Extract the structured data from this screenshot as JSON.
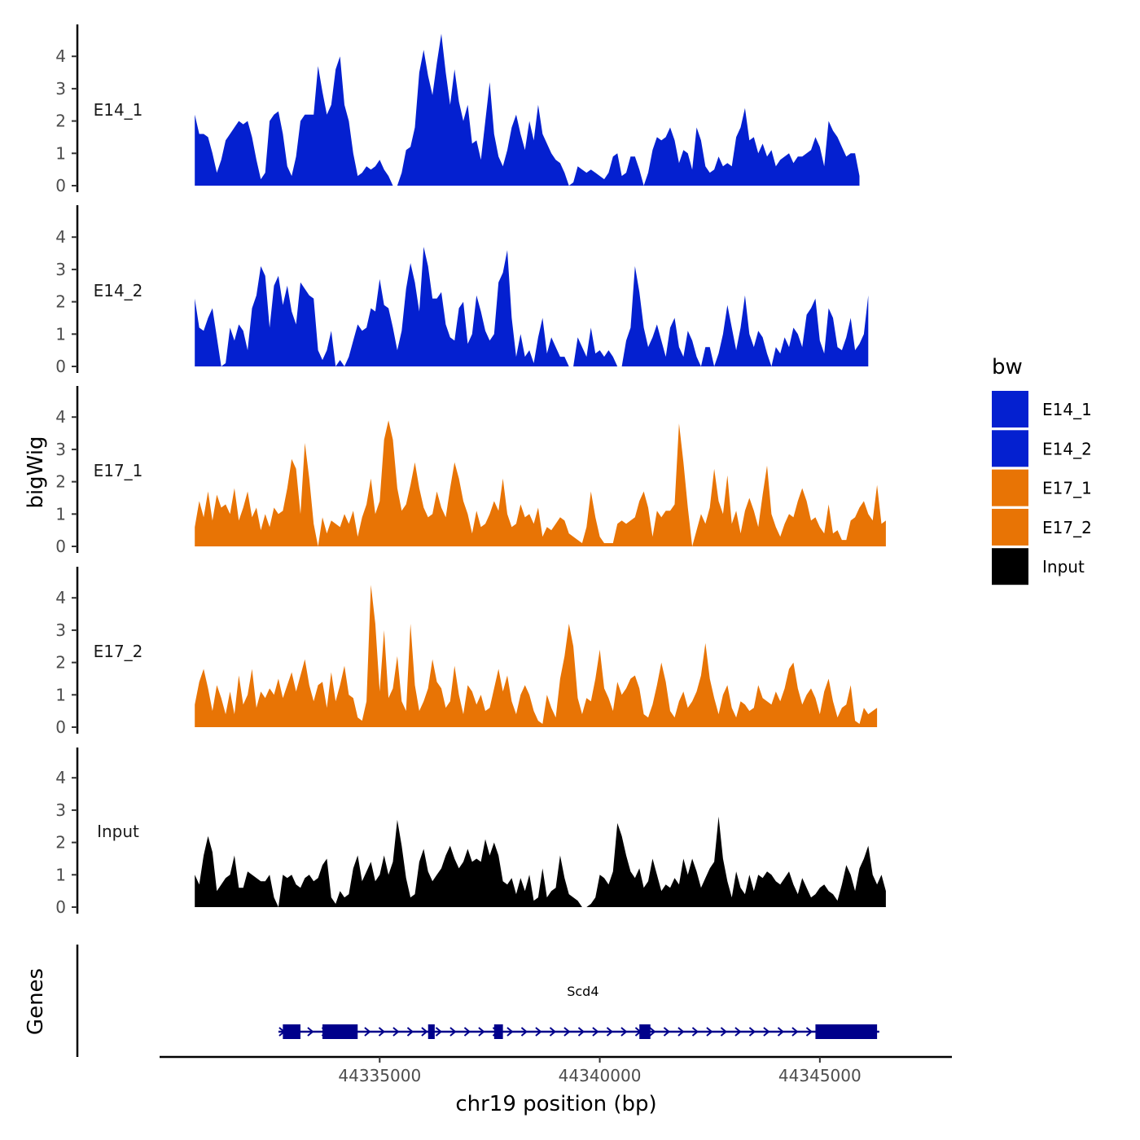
{
  "chart_data": {
    "type": "area",
    "chromosome": "chr19",
    "xlabel": "chr19 position (bp)",
    "ylabel": "bigWig",
    "genes_label": "Genes",
    "xlim": [
      44330000,
      44348000
    ],
    "ylim": [
      0,
      4.9
    ],
    "x_ticks": [
      44335000,
      44340000,
      44345000
    ],
    "x_tick_labels": [
      "44335000",
      "44340000",
      "44345000"
    ],
    "y_ticks": [
      0,
      1,
      2,
      3,
      4
    ],
    "y_tick_labels": [
      "0",
      "1",
      "2",
      "3",
      "4"
    ],
    "x_start": 44330800,
    "x_step": 100,
    "series": [
      {
        "name": "E14_1",
        "color": "#0420D0",
        "values": [
          2.2,
          1.6,
          1.6,
          1.5,
          1.0,
          0.4,
          0.8,
          1.4,
          1.6,
          1.8,
          2.0,
          1.9,
          2.0,
          1.5,
          0.8,
          0.2,
          0.4,
          2.0,
          2.2,
          2.3,
          1.6,
          0.6,
          0.3,
          0.9,
          2.0,
          2.2,
          2.2,
          2.2,
          3.7,
          2.9,
          2.2,
          2.5,
          3.6,
          4.0,
          2.5,
          2.0,
          1.0,
          0.3,
          0.4,
          0.6,
          0.5,
          0.6,
          0.8,
          0.5,
          0.3,
          0.0,
          0.0,
          0.4,
          1.1,
          1.2,
          1.8,
          3.5,
          4.2,
          3.4,
          2.8,
          3.8,
          4.7,
          3.5,
          2.5,
          3.6,
          2.6,
          2.0,
          2.5,
          1.3,
          1.4,
          0.8,
          2.0,
          3.2,
          1.6,
          0.9,
          0.6,
          1.1,
          1.8,
          2.2,
          1.6,
          1.1,
          2.0,
          1.4,
          2.5,
          1.6,
          1.3,
          1.0,
          0.8,
          0.7,
          0.4,
          0.0,
          0.1,
          0.6,
          0.5,
          0.4,
          0.5,
          0.4,
          0.3,
          0.2,
          0.4,
          0.9,
          1.0,
          0.3,
          0.4,
          0.9,
          0.9,
          0.5,
          0.0,
          0.4,
          1.1,
          1.5,
          1.4,
          1.5,
          1.8,
          1.4,
          0.7,
          1.1,
          1.0,
          0.5,
          1.8,
          1.4,
          0.6,
          0.4,
          0.5,
          0.9,
          0.6,
          0.7,
          0.6,
          1.5,
          1.8,
          2.4,
          1.4,
          1.5,
          1.0,
          1.3,
          0.9,
          1.1,
          0.6,
          0.8,
          0.9,
          1.0,
          0.7,
          0.9,
          0.9,
          1.0,
          1.1,
          1.5,
          1.2,
          0.6,
          2.0,
          1.7,
          1.5,
          1.2,
          0.9,
          1.0,
          1.0,
          0.3
        ]
      },
      {
        "name": "E14_2",
        "color": "#0420D0",
        "values": [
          2.1,
          1.2,
          1.1,
          1.5,
          1.8,
          0.9,
          0.0,
          0.1,
          1.2,
          0.8,
          1.3,
          1.1,
          0.5,
          1.8,
          2.2,
          3.1,
          2.8,
          1.2,
          2.5,
          2.8,
          1.9,
          2.5,
          1.7,
          1.3,
          2.6,
          2.4,
          2.2,
          2.1,
          0.5,
          0.2,
          0.5,
          1.1,
          0.0,
          0.2,
          0.0,
          0.3,
          0.8,
          1.3,
          1.1,
          1.2,
          1.8,
          1.7,
          2.7,
          1.9,
          1.8,
          1.2,
          0.5,
          1.1,
          2.4,
          3.2,
          2.6,
          1.7,
          3.7,
          3.1,
          2.1,
          2.1,
          2.3,
          1.3,
          0.9,
          0.8,
          1.8,
          2.0,
          0.7,
          1.0,
          2.2,
          1.7,
          1.1,
          0.8,
          1.0,
          2.6,
          2.9,
          3.6,
          1.5,
          0.3,
          1.0,
          0.3,
          0.5,
          0.1,
          0.9,
          1.5,
          0.4,
          0.9,
          0.6,
          0.3,
          0.3,
          0.0,
          0.0,
          0.9,
          0.6,
          0.3,
          1.2,
          0.4,
          0.5,
          0.3,
          0.5,
          0.3,
          0.0,
          0.0,
          0.8,
          1.2,
          3.1,
          2.3,
          1.2,
          0.6,
          0.9,
          1.3,
          0.8,
          0.3,
          1.2,
          1.5,
          0.6,
          0.3,
          1.1,
          0.8,
          0.3,
          0.0,
          0.6,
          0.6,
          0.0,
          0.4,
          1.0,
          1.9,
          1.2,
          0.5,
          1.2,
          2.2,
          1.0,
          0.6,
          1.1,
          0.9,
          0.4,
          0.0,
          0.6,
          0.4,
          0.9,
          0.6,
          1.2,
          1.0,
          0.6,
          1.6,
          1.8,
          2.1,
          0.8,
          0.4,
          1.8,
          1.5,
          0.6,
          0.5,
          0.9,
          1.5,
          0.5,
          0.7,
          1.0,
          2.2
        ]
      },
      {
        "name": "E17_1",
        "color": "#E87405",
        "values": [
          0.6,
          1.4,
          0.9,
          1.7,
          0.8,
          1.6,
          1.2,
          1.3,
          1.0,
          1.8,
          0.8,
          1.2,
          1.7,
          0.9,
          1.2,
          0.5,
          1.0,
          0.6,
          1.2,
          1.0,
          1.1,
          1.8,
          2.7,
          2.4,
          1.0,
          3.2,
          2.1,
          0.7,
          0.0,
          0.9,
          0.4,
          0.8,
          0.7,
          0.6,
          1.0,
          0.7,
          1.1,
          0.3,
          0.9,
          1.3,
          2.1,
          1.0,
          1.4,
          3.3,
          3.9,
          3.3,
          1.8,
          1.1,
          1.3,
          1.9,
          2.6,
          1.8,
          1.2,
          0.9,
          1.0,
          1.7,
          1.2,
          0.9,
          1.8,
          2.6,
          2.1,
          1.4,
          1.0,
          0.4,
          1.1,
          0.6,
          0.7,
          1.0,
          1.4,
          1.1,
          2.1,
          1.0,
          0.6,
          0.7,
          1.3,
          0.9,
          1.0,
          0.7,
          1.2,
          0.3,
          0.6,
          0.5,
          0.7,
          0.9,
          0.8,
          0.4,
          0.3,
          0.2,
          0.1,
          0.6,
          1.7,
          0.9,
          0.3,
          0.1,
          0.1,
          0.1,
          0.7,
          0.8,
          0.7,
          0.8,
          0.9,
          1.4,
          1.7,
          1.2,
          0.3,
          1.1,
          0.9,
          1.1,
          1.1,
          1.3,
          3.8,
          2.6,
          1.2,
          0.0,
          0.5,
          1.0,
          0.7,
          1.2,
          2.4,
          1.4,
          1.0,
          2.2,
          0.7,
          1.1,
          0.4,
          1.1,
          1.5,
          1.1,
          0.6,
          1.6,
          2.5,
          1.0,
          0.6,
          0.3,
          0.7,
          1.0,
          0.9,
          1.4,
          1.8,
          1.4,
          0.8,
          0.9,
          0.6,
          0.4,
          1.3,
          0.4,
          0.5,
          0.2,
          0.2,
          0.8,
          0.9,
          1.2,
          1.4,
          1.0,
          0.8,
          1.9,
          0.7,
          0.8
        ]
      },
      {
        "name": "E17_2",
        "color": "#E87405",
        "values": [
          0.7,
          1.4,
          1.8,
          1.2,
          0.5,
          1.3,
          0.9,
          0.4,
          1.1,
          0.4,
          1.6,
          0.7,
          1.0,
          1.8,
          0.6,
          1.1,
          0.9,
          1.2,
          1.0,
          1.5,
          0.9,
          1.3,
          1.7,
          1.1,
          1.6,
          2.1,
          1.3,
          0.8,
          1.3,
          1.4,
          0.6,
          1.7,
          0.8,
          1.3,
          1.9,
          1.0,
          0.9,
          0.3,
          0.2,
          0.8,
          4.4,
          3.2,
          1.1,
          3.0,
          0.9,
          1.2,
          2.2,
          0.8,
          0.5,
          3.2,
          1.3,
          0.5,
          0.8,
          1.2,
          2.1,
          1.4,
          1.2,
          0.6,
          0.8,
          1.9,
          1.0,
          0.4,
          1.3,
          1.1,
          0.7,
          1.0,
          0.5,
          0.6,
          1.2,
          1.8,
          1.1,
          1.6,
          0.8,
          0.4,
          1.0,
          1.3,
          1.0,
          0.5,
          0.2,
          0.1,
          1.0,
          0.6,
          0.3,
          1.5,
          2.2,
          3.2,
          2.5,
          0.9,
          0.4,
          0.9,
          0.8,
          1.5,
          2.4,
          1.2,
          0.9,
          0.5,
          1.4,
          1.0,
          1.2,
          1.5,
          1.6,
          1.2,
          0.4,
          0.3,
          0.7,
          1.3,
          2.0,
          1.4,
          0.5,
          0.3,
          0.8,
          1.1,
          0.6,
          0.8,
          1.1,
          1.6,
          2.6,
          1.5,
          0.9,
          0.4,
          1.0,
          1.3,
          0.6,
          0.3,
          0.8,
          0.7,
          0.5,
          0.6,
          1.3,
          0.9,
          0.8,
          0.7,
          1.1,
          0.8,
          1.2,
          1.8,
          2.0,
          1.2,
          0.7,
          1.0,
          1.2,
          0.9,
          0.4,
          1.1,
          1.5,
          0.8,
          0.3,
          0.6,
          0.7,
          1.3,
          0.2,
          0.1,
          0.6,
          0.4,
          0.5,
          0.6
        ]
      },
      {
        "name": "Input",
        "color": "#000000",
        "values": [
          1.0,
          0.7,
          1.6,
          2.2,
          1.7,
          0.5,
          0.7,
          0.9,
          1.0,
          1.6,
          0.6,
          0.6,
          1.1,
          1.0,
          0.9,
          0.8,
          0.8,
          1.0,
          0.3,
          0.0,
          1.0,
          0.9,
          1.0,
          0.7,
          0.6,
          0.9,
          1.0,
          0.8,
          0.9,
          1.3,
          1.5,
          0.3,
          0.1,
          0.5,
          0.3,
          0.4,
          1.2,
          1.6,
          0.8,
          1.1,
          1.4,
          0.8,
          1.0,
          1.6,
          1.0,
          1.4,
          2.7,
          1.9,
          0.9,
          0.3,
          0.4,
          1.4,
          1.8,
          1.1,
          0.8,
          1.0,
          1.2,
          1.6,
          1.9,
          1.5,
          1.2,
          1.4,
          1.8,
          1.4,
          1.5,
          1.4,
          2.1,
          1.6,
          2.0,
          1.6,
          0.8,
          0.7,
          0.9,
          0.4,
          0.9,
          0.5,
          1.0,
          0.2,
          0.3,
          1.2,
          0.3,
          0.5,
          0.6,
          1.6,
          0.9,
          0.4,
          0.3,
          0.2,
          0.0,
          0.0,
          0.1,
          0.3,
          1.0,
          0.9,
          0.7,
          1.1,
          2.6,
          2.2,
          1.6,
          1.1,
          0.9,
          1.2,
          0.6,
          0.8,
          1.5,
          1.0,
          0.5,
          0.7,
          0.6,
          0.9,
          0.7,
          1.5,
          1.0,
          1.5,
          1.1,
          0.6,
          0.9,
          1.2,
          1.4,
          2.8,
          1.5,
          0.8,
          0.3,
          1.1,
          0.6,
          0.4,
          1.0,
          0.5,
          1.0,
          0.9,
          1.1,
          1.0,
          0.8,
          0.7,
          0.9,
          1.1,
          0.7,
          0.4,
          0.9,
          0.6,
          0.3,
          0.4,
          0.6,
          0.7,
          0.5,
          0.4,
          0.2,
          0.7,
          1.3,
          1.0,
          0.5,
          1.2,
          1.5,
          1.9,
          1.0,
          0.7,
          1.0,
          0.5
        ]
      }
    ],
    "legend": {
      "title": "bw",
      "items": [
        {
          "label": "E14_1",
          "color": "#0420D0"
        },
        {
          "label": "E14_2",
          "color": "#0420D0"
        },
        {
          "label": "E17_1",
          "color": "#E87405"
        },
        {
          "label": "E17_2",
          "color": "#E87405"
        },
        {
          "label": "Input",
          "color": "#000000"
        }
      ]
    },
    "gene": {
      "name": "Scd4",
      "strand": "+",
      "color": "#00008B",
      "start": 44332700,
      "end": 44346350,
      "exons": [
        [
          44332800,
          44333200
        ],
        [
          44333700,
          44334500
        ],
        [
          44336100,
          44336250
        ],
        [
          44337600,
          44337800
        ],
        [
          44340900,
          44341150
        ],
        [
          44344900,
          44346300
        ]
      ]
    }
  }
}
